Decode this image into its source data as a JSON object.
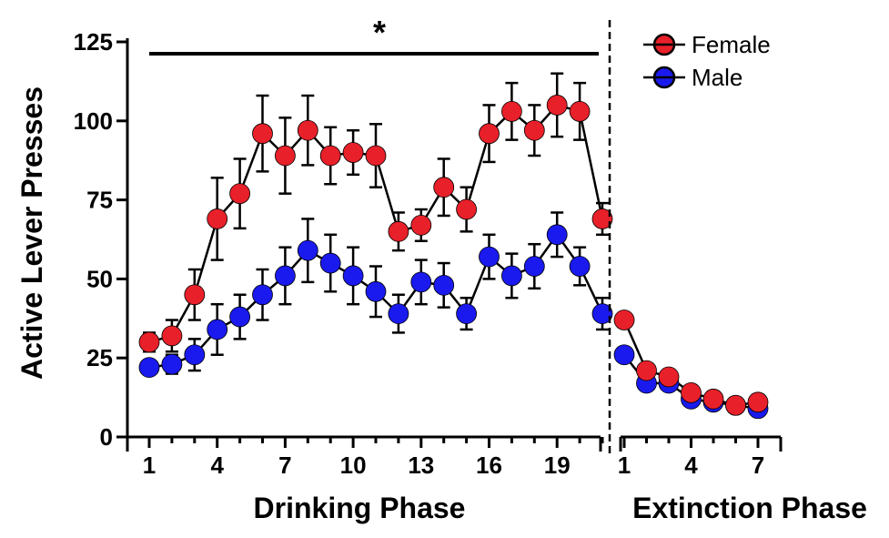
{
  "chart_data": {
    "type": "line",
    "ylabel": "Active Lever Presses",
    "ylim": [
      0,
      125
    ],
    "yticks": [
      0,
      25,
      50,
      75,
      100,
      125
    ],
    "significance_marker": "*",
    "legend": {
      "placement": "top-right"
    },
    "series_colors": {
      "Female": "#e8202a",
      "Male": "#1a1aee"
    },
    "panels": [
      {
        "xlabel": "Drinking Phase",
        "x": [
          1,
          2,
          3,
          4,
          5,
          6,
          7,
          8,
          9,
          10,
          11,
          12,
          13,
          14,
          15,
          16,
          17,
          18,
          19,
          20,
          21
        ],
        "xticks": [
          1,
          4,
          7,
          10,
          13,
          16,
          19
        ],
        "series": [
          {
            "name": "Female",
            "values": [
              30,
              32,
              45,
              69,
              77,
              96,
              89,
              97,
              89,
              90,
              89,
              65,
              67,
              79,
              72,
              96,
              103,
              97,
              105,
              103,
              69
            ],
            "error": [
              3,
              5,
              8,
              13,
              11,
              12,
              12,
              11,
              9,
              7,
              10,
              6,
              5,
              9,
              7,
              9,
              9,
              8,
              10,
              9,
              5
            ]
          },
          {
            "name": "Male",
            "values": [
              22,
              23,
              26,
              34,
              38,
              45,
              51,
              59,
              55,
              51,
              46,
              39,
              49,
              48,
              39,
              57,
              51,
              54,
              64,
              54,
              39
            ],
            "error": [
              2,
              3,
              5,
              8,
              7,
              8,
              9,
              10,
              9,
              9,
              8,
              6,
              7,
              7,
              5,
              7,
              7,
              7,
              7,
              6,
              5
            ]
          }
        ]
      },
      {
        "xlabel": "Extinction Phase",
        "x": [
          1,
          2,
          3,
          4,
          5,
          6,
          7
        ],
        "xticks": [
          1,
          4,
          7
        ],
        "series": [
          {
            "name": "Female",
            "values": [
              37,
              21,
              19,
              14,
              12,
              10,
              11
            ],
            "error": [
              2,
              2,
              2,
              2,
              1,
              1,
              1
            ]
          },
          {
            "name": "Male",
            "values": [
              26,
              17,
              17,
              12,
              11,
              10,
              9
            ],
            "error": [
              2,
              2,
              2,
              1,
              1,
              1,
              1
            ]
          }
        ]
      }
    ]
  }
}
